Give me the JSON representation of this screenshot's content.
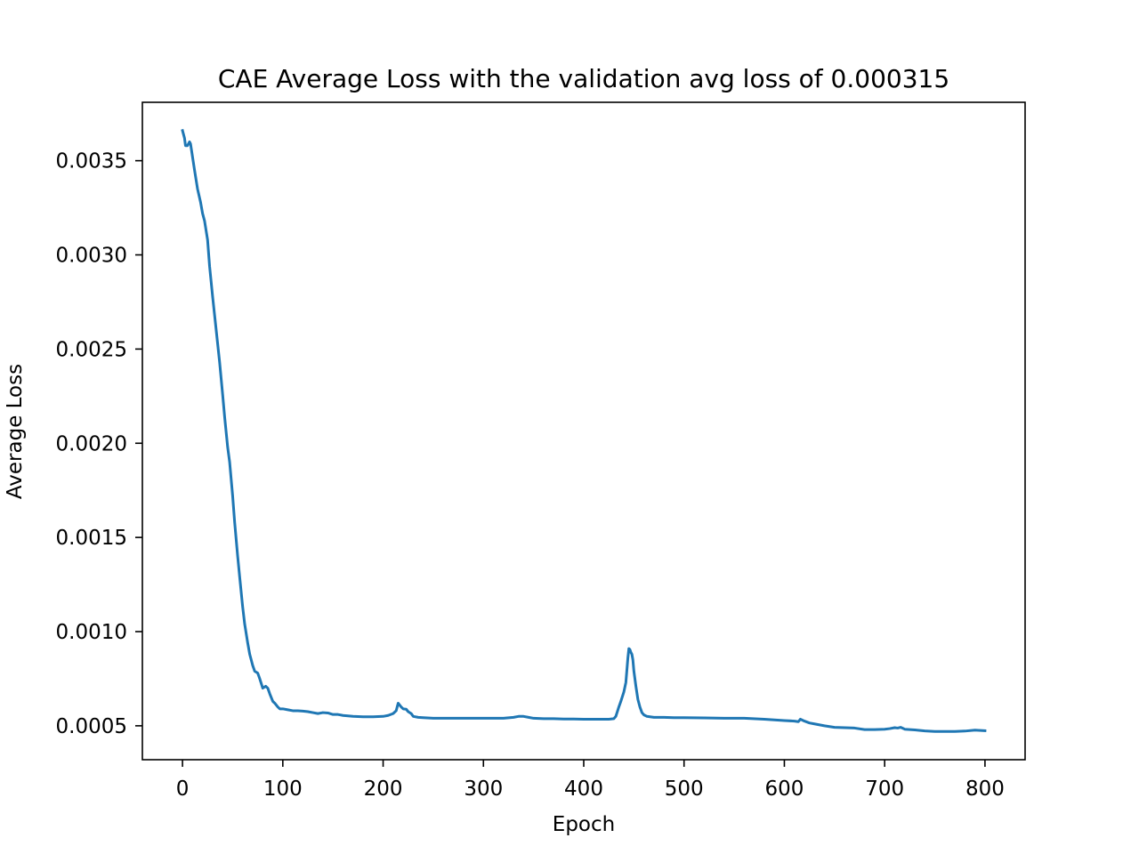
{
  "chart_data": {
    "type": "line",
    "title": "CAE Average Loss with the validation avg loss of 0.000315",
    "xlabel": "Epoch",
    "ylabel": "Average Loss",
    "xlim": [
      -40,
      840
    ],
    "ylim": [
      0.00032,
      0.00381
    ],
    "x_ticks": [
      0,
      100,
      200,
      300,
      400,
      500,
      600,
      700,
      800
    ],
    "x_tick_labels": [
      "0",
      "100",
      "200",
      "300",
      "400",
      "500",
      "600",
      "700",
      "800"
    ],
    "y_ticks": [
      0.0005,
      0.001,
      0.0015,
      0.002,
      0.0025,
      0.003,
      0.0035
    ],
    "y_tick_labels": [
      "0.0005",
      "0.0010",
      "0.0015",
      "0.0020",
      "0.0025",
      "0.0030",
      "0.0035"
    ],
    "grid": false,
    "legend": "none",
    "series": [
      {
        "color": "#1f77b4",
        "x": [
          0,
          2,
          3,
          5,
          7,
          8,
          10,
          12,
          15,
          18,
          20,
          22,
          25,
          27,
          30,
          32,
          35,
          37,
          40,
          42,
          45,
          47,
          50,
          52,
          55,
          57,
          60,
          62,
          65,
          67,
          70,
          72,
          75,
          77,
          80,
          83,
          85,
          87,
          90,
          92,
          95,
          97,
          100,
          105,
          110,
          115,
          120,
          125,
          130,
          135,
          140,
          145,
          150,
          155,
          160,
          170,
          180,
          190,
          200,
          205,
          210,
          213,
          215,
          218,
          220,
          223,
          225,
          228,
          230,
          235,
          240,
          250,
          260,
          270,
          280,
          290,
          300,
          310,
          320,
          330,
          335,
          340,
          345,
          350,
          360,
          370,
          380,
          390,
          400,
          410,
          420,
          425,
          430,
          432,
          435,
          437,
          440,
          442,
          444,
          445,
          446,
          447,
          448,
          449,
          450,
          452,
          454,
          456,
          458,
          460,
          463,
          466,
          470,
          475,
          480,
          490,
          500,
          520,
          540,
          560,
          580,
          600,
          610,
          614,
          616,
          620,
          625,
          630,
          640,
          650,
          660,
          670,
          680,
          690,
          700,
          705,
          710,
          713,
          716,
          720,
          730,
          740,
          750,
          760,
          770,
          780,
          790,
          800
        ],
        "y": [
          0.00366,
          0.00362,
          0.00358,
          0.00358,
          0.0036,
          0.00359,
          0.00352,
          0.00345,
          0.00335,
          0.00328,
          0.00322,
          0.00318,
          0.00308,
          0.00294,
          0.00278,
          0.00268,
          0.00253,
          0.00243,
          0.00226,
          0.00214,
          0.00198,
          0.0019,
          0.00172,
          0.00158,
          0.0014,
          0.00129,
          0.00113,
          0.00104,
          0.00094,
          0.00088,
          0.00082,
          0.00079,
          0.00078,
          0.00075,
          0.0007,
          0.00071,
          0.0007,
          0.00067,
          0.00063,
          0.00062,
          0.0006,
          0.00059,
          0.00059,
          0.000585,
          0.00058,
          0.00058,
          0.000578,
          0.000575,
          0.00057,
          0.000565,
          0.00057,
          0.000568,
          0.00056,
          0.00056,
          0.000555,
          0.00055,
          0.000548,
          0.000548,
          0.00055,
          0.000555,
          0.000565,
          0.00058,
          0.00062,
          0.0006,
          0.00059,
          0.000588,
          0.000575,
          0.000565,
          0.00055,
          0.000545,
          0.000543,
          0.00054,
          0.00054,
          0.00054,
          0.00054,
          0.00054,
          0.00054,
          0.00054,
          0.00054,
          0.000545,
          0.00055,
          0.00055,
          0.000545,
          0.00054,
          0.000538,
          0.000538,
          0.000536,
          0.000536,
          0.000535,
          0.000535,
          0.000535,
          0.000535,
          0.000538,
          0.00055,
          0.0006,
          0.00063,
          0.00068,
          0.00073,
          0.00086,
          0.00091,
          0.000905,
          0.00089,
          0.00088,
          0.00085,
          0.00079,
          0.00071,
          0.00064,
          0.0006,
          0.00057,
          0.000558,
          0.00055,
          0.000548,
          0.000545,
          0.000545,
          0.000545,
          0.000543,
          0.000543,
          0.000542,
          0.00054,
          0.00054,
          0.000535,
          0.000528,
          0.000525,
          0.000522,
          0.000535,
          0.000525,
          0.000515,
          0.00051,
          0.0005,
          0.000492,
          0.00049,
          0.000488,
          0.00048,
          0.00048,
          0.000482,
          0.000485,
          0.00049,
          0.000488,
          0.000492,
          0.000482,
          0.000478,
          0.000473,
          0.00047,
          0.00047,
          0.00047,
          0.000472,
          0.000477,
          0.000474
        ]
      }
    ]
  }
}
